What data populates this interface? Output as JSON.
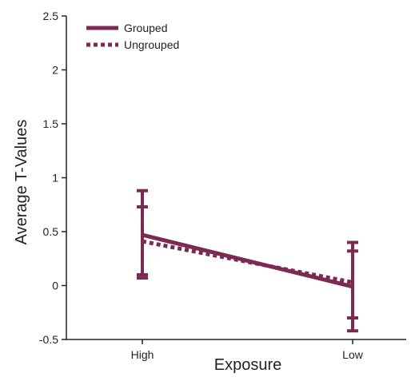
{
  "chart_data": {
    "type": "line",
    "categories": [
      "High",
      "Low"
    ],
    "xlabel": "Exposure",
    "ylabel": "Average T-Values",
    "ylim": [
      -0.5,
      2.5
    ],
    "yticks": [
      "-0.5",
      "0",
      "0.5",
      "1",
      "1.5",
      "2",
      "2.5"
    ],
    "yticks_values": [
      -0.5,
      0,
      0.5,
      1,
      1.5,
      2,
      2.5
    ],
    "grid": false,
    "legend_position": "top-left",
    "series": [
      {
        "name": "Grouped",
        "style": "solid",
        "color": "#7b2a52",
        "values": [
          0.47,
          -0.01
        ],
        "error_low": [
          0.07,
          -0.42
        ],
        "error_high": [
          0.88,
          0.4
        ]
      },
      {
        "name": "Ungrouped",
        "style": "dotted",
        "color": "#7b2a52",
        "values": [
          0.41,
          0.03
        ],
        "error_low": [
          0.1,
          -0.3
        ],
        "error_high": [
          0.73,
          0.32
        ]
      }
    ]
  }
}
